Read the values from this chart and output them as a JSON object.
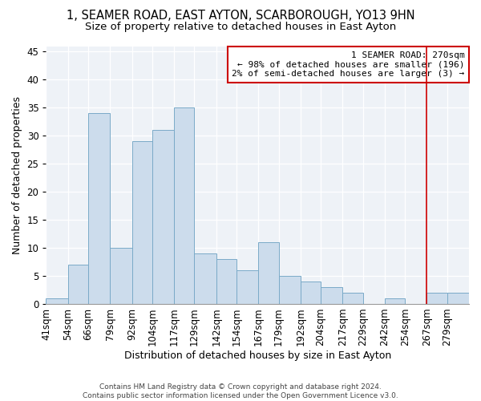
{
  "title1": "1, SEAMER ROAD, EAST AYTON, SCARBOROUGH, YO13 9HN",
  "title2": "Size of property relative to detached houses in East Ayton",
  "xlabel": "Distribution of detached houses by size in East Ayton",
  "ylabel": "Number of detached properties",
  "bar_values": [
    1,
    7,
    34,
    10,
    29,
    31,
    35,
    9,
    8,
    6,
    11,
    5,
    4,
    3,
    2,
    0,
    1,
    0,
    2,
    2
  ],
  "bin_edges": [
    41,
    54,
    66,
    79,
    92,
    104,
    117,
    129,
    142,
    154,
    167,
    179,
    192,
    204,
    217,
    229,
    242,
    254,
    267,
    279,
    292
  ],
  "bar_color": "#ccdcec",
  "bar_edge_color": "#7aaac8",
  "property_size": 267,
  "vline_color": "#cc0000",
  "annotation_line1": "1 SEAMER ROAD: 270sqm",
  "annotation_line2": "← 98% of detached houses are smaller (196)",
  "annotation_line3": "2% of semi-detached houses are larger (3) →",
  "annotation_box_color": "#ffffff",
  "annotation_box_edge_color": "#cc0000",
  "ylim": [
    0,
    46
  ],
  "yticks": [
    0,
    5,
    10,
    15,
    20,
    25,
    30,
    35,
    40,
    45
  ],
  "background_color": "#eef2f7",
  "footer_text": "Contains HM Land Registry data © Crown copyright and database right 2024.\nContains public sector information licensed under the Open Government Licence v3.0.",
  "title1_fontsize": 10.5,
  "title2_fontsize": 9.5,
  "xlabel_fontsize": 9,
  "ylabel_fontsize": 9,
  "tick_fontsize": 8.5,
  "annotation_fontsize": 8
}
